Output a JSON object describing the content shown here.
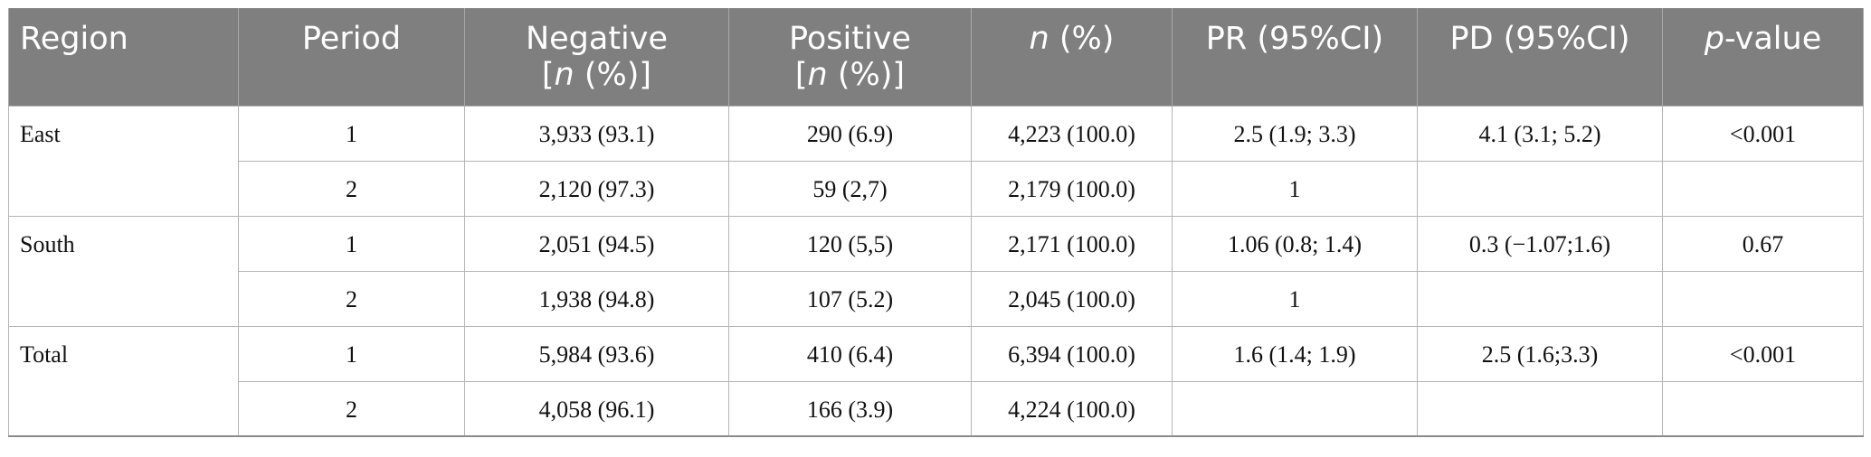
{
  "headers": {
    "region": "Region",
    "period": "Period",
    "negative_line1": "Negative",
    "negative_pre": "[",
    "negative_n": "n",
    "negative_post": " (%)]",
    "positive_line1": "Positive",
    "positive_pre": "[",
    "positive_n": "n",
    "positive_post": " (%)]",
    "n_italic": "n",
    "n_post": " (%)",
    "pr": "PR (95%CI)",
    "pd": "PD (95%CI)",
    "p_italic": "p",
    "p_post": "-value"
  },
  "groups": [
    {
      "region": "East",
      "pd": "4.1 (3.1; 5.2)",
      "p_value": "<0.001",
      "rows": [
        {
          "period": "1",
          "negative": "3,933 (93.1)",
          "positive": "290 (6.9)",
          "n": "4,223 (100.0)",
          "pr": "2.5 (1.9; 3.3)"
        },
        {
          "period": "2",
          "negative": "2,120 (97.3)",
          "positive": "59 (2,7)",
          "n": "2,179 (100.0)",
          "pr": "1"
        }
      ]
    },
    {
      "region": "South",
      "pd": "0.3 (−1.07;1.6)",
      "p_value": "0.67",
      "rows": [
        {
          "period": "1",
          "negative": "2,051 (94.5)",
          "positive": "120 (5,5)",
          "n": "2,171 (100.0)",
          "pr": "1.06 (0.8; 1.4)"
        },
        {
          "period": "2",
          "negative": "1,938 (94.8)",
          "positive": "107 (5.2)",
          "n": "2,045 (100.0)",
          "pr": "1"
        }
      ]
    },
    {
      "region": "Total",
      "pd": "2.5 (1.6;3.3)",
      "p_value": "<0.001",
      "rows": [
        {
          "period": "1",
          "negative": "5,984 (93.6)",
          "positive": "410 (6.4)",
          "n": "6,394 (100.0)",
          "pr": "1.6 (1.4; 1.9)"
        },
        {
          "period": "2",
          "negative": "4,058 (96.1)",
          "positive": "166 (3.9)",
          "n": "4,224 (100.0)",
          "pr": ""
        }
      ]
    }
  ]
}
